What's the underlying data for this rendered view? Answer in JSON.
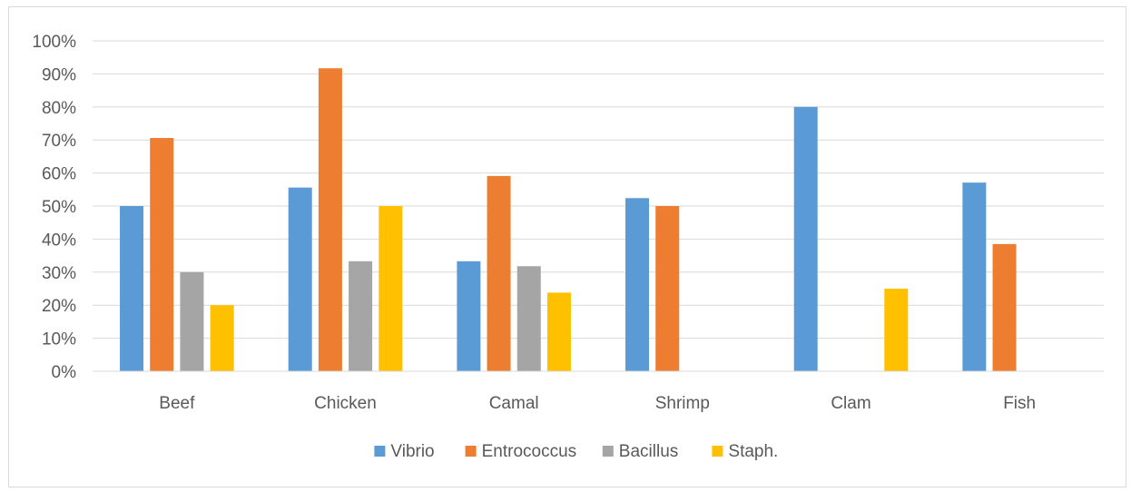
{
  "chart_data": {
    "type": "bar",
    "title": "",
    "xlabel": "",
    "ylabel": "",
    "categories": [
      "Beef",
      "Chicken",
      "Camal",
      "Shrimp",
      "Clam",
      "Fish"
    ],
    "series": [
      {
        "name": "Vibrio",
        "color": "#5b9bd5",
        "values": [
          50,
          55.6,
          33.3,
          52.4,
          80,
          57.1
        ]
      },
      {
        "name": "Entrococcus",
        "color": "#ed7d31",
        "values": [
          70.6,
          91.7,
          59.1,
          50,
          0,
          38.5
        ]
      },
      {
        "name": "Bacillus",
        "color": "#a5a5a5",
        "values": [
          30,
          33.3,
          31.8,
          0,
          0,
          0
        ]
      },
      {
        "name": "Staph.",
        "color": "#ffc000",
        "values": [
          20,
          50,
          23.8,
          0,
          25,
          0
        ]
      }
    ],
    "ylim": [
      0,
      100
    ],
    "yticks": [
      "0%",
      "10%",
      "20%",
      "30%",
      "40%",
      "50%",
      "60%",
      "70%",
      "80%",
      "90%",
      "100%"
    ],
    "grid": true,
    "legend_position": "bottom"
  }
}
